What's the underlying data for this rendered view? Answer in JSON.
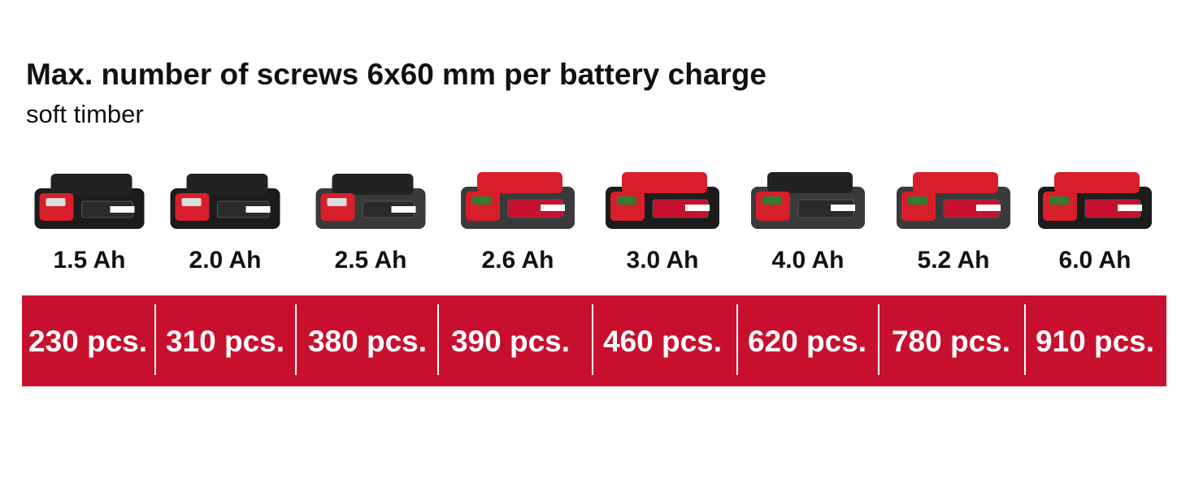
{
  "header": {
    "title": "Max. number of screws 6x60 mm per battery charge",
    "subtitle": "soft timber"
  },
  "batteries": [
    {
      "capacity": "1.5 Ah",
      "screws": "230 pcs."
    },
    {
      "capacity": "2.0 Ah",
      "screws": "310 pcs."
    },
    {
      "capacity": "2.5 Ah",
      "screws": "380 pcs."
    },
    {
      "capacity": "2.6 Ah",
      "screws": "390 pcs."
    },
    {
      "capacity": "3.0 Ah",
      "screws": "460 pcs."
    },
    {
      "capacity": "4.0 Ah",
      "screws": "620 pcs."
    },
    {
      "capacity": "5.2 Ah",
      "screws": "780 pcs."
    },
    {
      "capacity": "6.0 Ah",
      "screws": "910 pcs."
    }
  ]
}
